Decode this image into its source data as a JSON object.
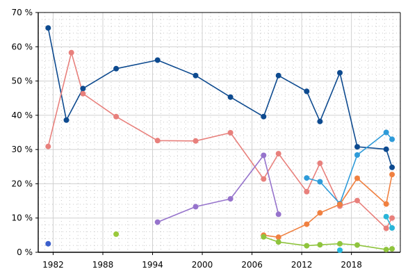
{
  "chart_data": {
    "type": "line",
    "title": "",
    "xlabel": "",
    "ylabel": "",
    "xlim": [
      1980.2,
      2023.9
    ],
    "ylim": [
      0,
      70
    ],
    "x_ticks": [
      1982,
      1988,
      1994,
      2000,
      2006,
      2012,
      2018
    ],
    "x_tick_labels": [
      "1982",
      "1988",
      "1994",
      "2000",
      "2006",
      "2012",
      "2018"
    ],
    "y_ticks": [
      0,
      10,
      20,
      30,
      40,
      50,
      60,
      70
    ],
    "y_tick_labels": [
      "0 %",
      "10 %",
      "20 %",
      "30 %",
      "40 %",
      "50 %",
      "60 %",
      "70 %"
    ],
    "grid": true,
    "legend": "none",
    "series": [
      {
        "color": "#0d4a8f",
        "points": [
          [
            1981.4,
            65.5
          ],
          [
            1983.6,
            38.6
          ],
          [
            1985.6,
            47.8
          ],
          [
            1989.6,
            53.6
          ],
          [
            1994.6,
            56.1
          ],
          [
            1999.2,
            51.6
          ],
          [
            2003.4,
            45.3
          ],
          [
            2007.4,
            39.6
          ],
          [
            2009.2,
            51.6
          ],
          [
            2012.6,
            47.0
          ],
          [
            2014.2,
            38.2
          ],
          [
            2016.6,
            52.4
          ],
          [
            2018.7,
            30.8
          ],
          [
            2022.2,
            30.1
          ],
          [
            2022.9,
            24.8
          ]
        ]
      },
      {
        "color": "#e8807c",
        "points": [
          [
            1981.4,
            30.9
          ],
          [
            1984.2,
            58.3
          ],
          [
            1985.6,
            46.3
          ],
          [
            1989.6,
            39.6
          ],
          [
            1994.6,
            32.6
          ],
          [
            1999.2,
            32.5
          ],
          [
            2003.4,
            34.9
          ],
          [
            2007.4,
            21.4
          ],
          [
            2009.2,
            28.8
          ],
          [
            2012.6,
            17.7
          ],
          [
            2014.2,
            26.0
          ],
          [
            2016.6,
            13.5
          ],
          [
            2018.7,
            15.1
          ],
          [
            2022.2,
            7.0
          ],
          [
            2022.9,
            10.0
          ]
        ]
      },
      {
        "color": "#9673cc",
        "points": [
          [
            1994.6,
            8.8
          ],
          [
            1999.2,
            13.3
          ],
          [
            2003.4,
            15.6
          ],
          [
            2007.4,
            28.3
          ],
          [
            2009.2,
            11.1
          ]
        ]
      },
      {
        "color": "#2e9bd9",
        "points": [
          [
            2012.6,
            21.7
          ],
          [
            2014.2,
            20.6
          ],
          [
            2016.6,
            14.2
          ],
          [
            2018.7,
            28.4
          ],
          [
            2022.2,
            35.0
          ],
          [
            2022.9,
            33.0
          ]
        ]
      },
      {
        "color": "#f08040",
        "points": [
          [
            2007.4,
            5.0
          ],
          [
            2009.2,
            4.4
          ],
          [
            2012.6,
            8.2
          ],
          [
            2014.2,
            11.5
          ],
          [
            2016.6,
            14.0
          ],
          [
            2018.7,
            21.6
          ],
          [
            2022.2,
            14.1
          ],
          [
            2022.9,
            22.7
          ]
        ]
      },
      {
        "color": "#8fc43d",
        "points": [
          [
            2007.4,
            4.5
          ],
          [
            2009.2,
            3.0
          ],
          [
            2012.6,
            1.9
          ],
          [
            2014.2,
            2.2
          ],
          [
            2016.6,
            2.5
          ],
          [
            2018.7,
            2.1
          ],
          [
            2022.2,
            0.8
          ],
          [
            2022.9,
            1.0
          ]
        ]
      },
      {
        "color": "#2ab5d8",
        "points": [
          [
            2022.2,
            10.4
          ],
          [
            2022.9,
            7.1
          ]
        ]
      },
      {
        "color": "#3b5fcc",
        "points": [
          [
            1981.4,
            2.5
          ]
        ]
      },
      {
        "color": "#9ac93c",
        "points": [
          [
            1989.6,
            5.3
          ]
        ]
      },
      {
        "color": "#25b7de",
        "points": [
          [
            2016.6,
            0.6
          ]
        ]
      }
    ]
  }
}
